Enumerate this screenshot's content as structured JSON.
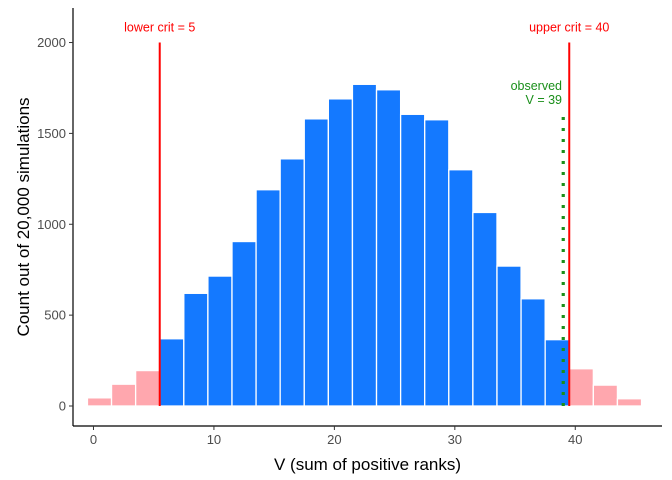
{
  "chart_data": {
    "type": "bar",
    "title": "",
    "xlabel": "V (sum of positive ranks)",
    "ylabel": "Count out of 20,000 simulations",
    "xlim": [
      -1.7,
      47.2
    ],
    "ylim": [
      -110,
      2190
    ],
    "bin_width": 2,
    "x_ticks": [
      0,
      10,
      20,
      30,
      40
    ],
    "y_ticks": [
      0,
      500,
      1000,
      1500,
      2000
    ],
    "grid": false,
    "colors": {
      "bar_inside": "#1479FF",
      "bar_outside": "#FFA7AE",
      "bar_border": "#FFFFFF",
      "critical_line": "#FF0000",
      "observed_line": "#1A8F1A",
      "axis": "#000000"
    },
    "bars": [
      {
        "x": 0.5,
        "count": 45,
        "region": "outside"
      },
      {
        "x": 2.5,
        "count": 120,
        "region": "outside"
      },
      {
        "x": 4.5,
        "count": 195,
        "region": "outside"
      },
      {
        "x": 6.5,
        "count": 370,
        "region": "inside"
      },
      {
        "x": 8.5,
        "count": 620,
        "region": "inside"
      },
      {
        "x": 10.5,
        "count": 715,
        "region": "inside"
      },
      {
        "x": 12.5,
        "count": 905,
        "region": "inside"
      },
      {
        "x": 14.5,
        "count": 1190,
        "region": "inside"
      },
      {
        "x": 16.5,
        "count": 1360,
        "region": "inside"
      },
      {
        "x": 18.5,
        "count": 1580,
        "region": "inside"
      },
      {
        "x": 20.5,
        "count": 1690,
        "region": "inside"
      },
      {
        "x": 22.5,
        "count": 1770,
        "region": "inside"
      },
      {
        "x": 24.5,
        "count": 1740,
        "region": "inside"
      },
      {
        "x": 26.5,
        "count": 1605,
        "region": "inside"
      },
      {
        "x": 28.5,
        "count": 1575,
        "region": "inside"
      },
      {
        "x": 30.5,
        "count": 1300,
        "region": "inside"
      },
      {
        "x": 32.5,
        "count": 1065,
        "region": "inside"
      },
      {
        "x": 34.5,
        "count": 770,
        "region": "inside"
      },
      {
        "x": 36.5,
        "count": 590,
        "region": "inside"
      },
      {
        "x": 38.5,
        "count": 365,
        "region": "inside"
      },
      {
        "x": 40.5,
        "count": 205,
        "region": "outside"
      },
      {
        "x": 42.5,
        "count": 115,
        "region": "outside"
      },
      {
        "x": 44.5,
        "count": 40,
        "region": "outside"
      }
    ],
    "critical_lines": [
      {
        "x": 5.5,
        "y_top": 2000,
        "label": "lower crit = 5",
        "label_x": 5.5
      },
      {
        "x": 39.5,
        "y_top": 2000,
        "label": "upper crit = 40",
        "label_x": 39.5
      }
    ],
    "observed_line": {
      "x": 39,
      "y_top": 1600,
      "label_lines": [
        "observed",
        "V = 39"
      ],
      "label_x": 38.9,
      "label_y": 1740
    }
  }
}
